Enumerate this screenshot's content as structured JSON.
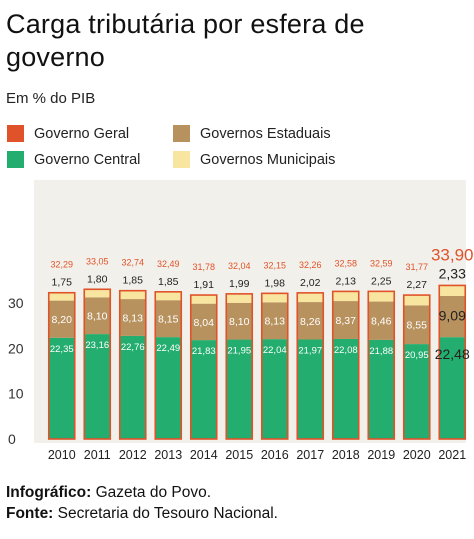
{
  "title": "Carga tributária por esfera de governo",
  "subtitle": "Em % do PIB",
  "legend": [
    {
      "label": "Governo Geral",
      "color": "#e0532a"
    },
    {
      "label": "Governos Estaduais",
      "color": "#b8925e"
    },
    {
      "label": "Governo Central",
      "color": "#23ad6e"
    },
    {
      "label": "Governos Municipais",
      "color": "#f8e59f"
    }
  ],
  "footer": {
    "infographic_label": "Infográfico:",
    "infographic_value": "Gazeta do Povo.",
    "source_label": "Fonte:",
    "source_value": "Secretaria do Tesouro Nacional."
  },
  "chart_data": {
    "type": "bar",
    "stacked": true,
    "categories": [
      "2010",
      "2011",
      "2012",
      "2013",
      "2014",
      "2015",
      "2016",
      "2017",
      "2018",
      "2019",
      "2020",
      "2021"
    ],
    "series": [
      {
        "name": "Governo Central",
        "color": "#23ad6e",
        "values": [
          22.35,
          23.16,
          22.76,
          22.49,
          21.83,
          21.95,
          22.04,
          21.97,
          22.08,
          21.88,
          20.95,
          22.48
        ],
        "labels": [
          "22,35",
          "23,16",
          "22,76",
          "22,49",
          "21,83",
          "21,95",
          "22,04",
          "21,97",
          "22,08",
          "21,88",
          "20,95",
          "22,48"
        ]
      },
      {
        "name": "Governos Estaduais",
        "color": "#b8925e",
        "values": [
          8.2,
          8.1,
          8.13,
          8.15,
          8.04,
          8.1,
          8.13,
          8.26,
          8.37,
          8.46,
          8.55,
          9.09
        ],
        "labels": [
          "8,20",
          "8,10",
          "8,13",
          "8,15",
          "8,04",
          "8,10",
          "8,13",
          "8,26",
          "8,37",
          "8,46",
          "8,55",
          "9,09"
        ]
      },
      {
        "name": "Governos Municipais",
        "color": "#f8e59f",
        "values": [
          1.75,
          1.8,
          1.85,
          1.85,
          1.91,
          1.99,
          1.98,
          2.02,
          2.13,
          2.25,
          2.27,
          2.33
        ],
        "labels": [
          "1,75",
          "1,80",
          "1,85",
          "1,85",
          "1,91",
          "1,99",
          "1,98",
          "2,02",
          "2,13",
          "2,25",
          "2,27",
          "2,33"
        ]
      }
    ],
    "totals": {
      "name": "Governo Geral",
      "color": "#e0532a",
      "values": [
        32.29,
        33.05,
        32.74,
        32.49,
        31.78,
        32.04,
        32.15,
        32.26,
        32.58,
        32.59,
        31.77,
        33.9
      ],
      "labels": [
        "32,29",
        "33,05",
        "32,74",
        "32,49",
        "31,78",
        "32,04",
        "32,15",
        "32,26",
        "32,58",
        "32,59",
        "31,77",
        "33,90"
      ]
    },
    "yticks": [
      0,
      10,
      20,
      30
    ],
    "ylim": [
      0,
      36
    ],
    "grid": false,
    "background": "#f2f0ea",
    "highlight_last": true
  }
}
